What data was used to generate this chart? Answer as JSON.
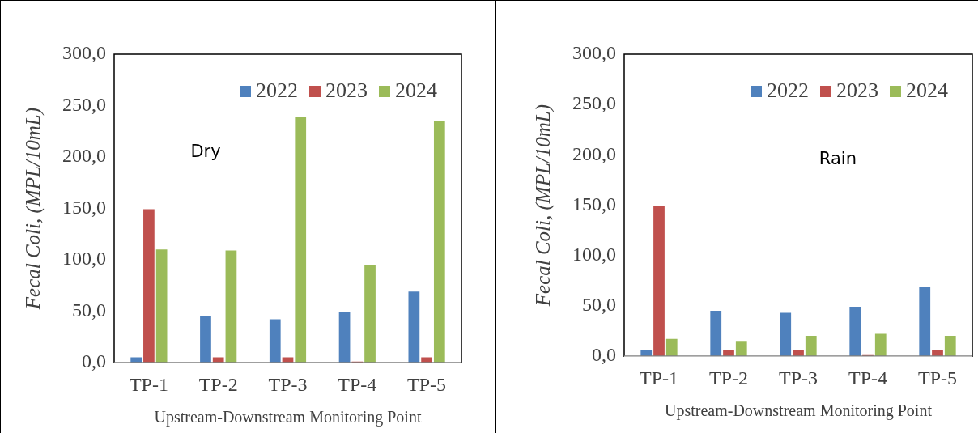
{
  "chart_data": [
    {
      "type": "bar",
      "ylabel": "Fecal Coli, (MPL/10mL)",
      "xlabel": "Upstream-Downstream Monitoring Point",
      "annotations": [
        "Dry"
      ],
      "categories": [
        "TP-1",
        "TP-2",
        "TP-3",
        "TP-4",
        "TP-5"
      ],
      "series": [
        {
          "name": "2022",
          "color": "#4f81bd",
          "values": [
            6,
            46,
            43,
            50,
            70
          ]
        },
        {
          "name": "2023",
          "color": "#c0504d",
          "values": [
            150,
            6,
            6,
            2,
            6
          ]
        },
        {
          "name": "2024",
          "color": "#9bbb59",
          "values": [
            111,
            110,
            240,
            96,
            236
          ]
        }
      ],
      "ylim": [
        0,
        300
      ],
      "yticks": [
        {
          "value": 0,
          "label": "0,0"
        },
        {
          "value": 50,
          "label": "50,0"
        },
        {
          "value": 100,
          "label": "100,0"
        },
        {
          "value": 150,
          "label": "150,0"
        },
        {
          "value": 200,
          "label": "200,0"
        },
        {
          "value": 250,
          "label": "250,0"
        },
        {
          "value": 300,
          "label": "300,0"
        }
      ],
      "grid": false,
      "legend": "top right"
    },
    {
      "type": "bar",
      "ylabel": "Fecal Coli, (MPL/10mL)",
      "xlabel": "Upstream-Downstream Monitoring Point",
      "annotations": [
        "Rain"
      ],
      "categories": [
        "TP-1",
        "TP-2",
        "TP-3",
        "TP-4",
        "TP-5"
      ],
      "series": [
        {
          "name": "2022",
          "color": "#4f81bd",
          "values": [
            7,
            46,
            44,
            50,
            70
          ]
        },
        {
          "name": "2023",
          "color": "#c0504d",
          "values": [
            150,
            7,
            7,
            2,
            7
          ]
        },
        {
          "name": "2024",
          "color": "#9bbb59",
          "values": [
            18,
            16,
            21,
            23,
            21
          ]
        }
      ],
      "ylim": [
        0,
        300
      ],
      "yticks": [
        {
          "value": 0,
          "label": "0,0"
        },
        {
          "value": 50,
          "label": "50,0"
        },
        {
          "value": 100,
          "label": "100,0"
        },
        {
          "value": 150,
          "label": "150,0"
        },
        {
          "value": 200,
          "label": "200,0"
        },
        {
          "value": 250,
          "label": "250,0"
        },
        {
          "value": 300,
          "label": "300,0"
        }
      ],
      "grid": false,
      "legend": "top right"
    }
  ]
}
